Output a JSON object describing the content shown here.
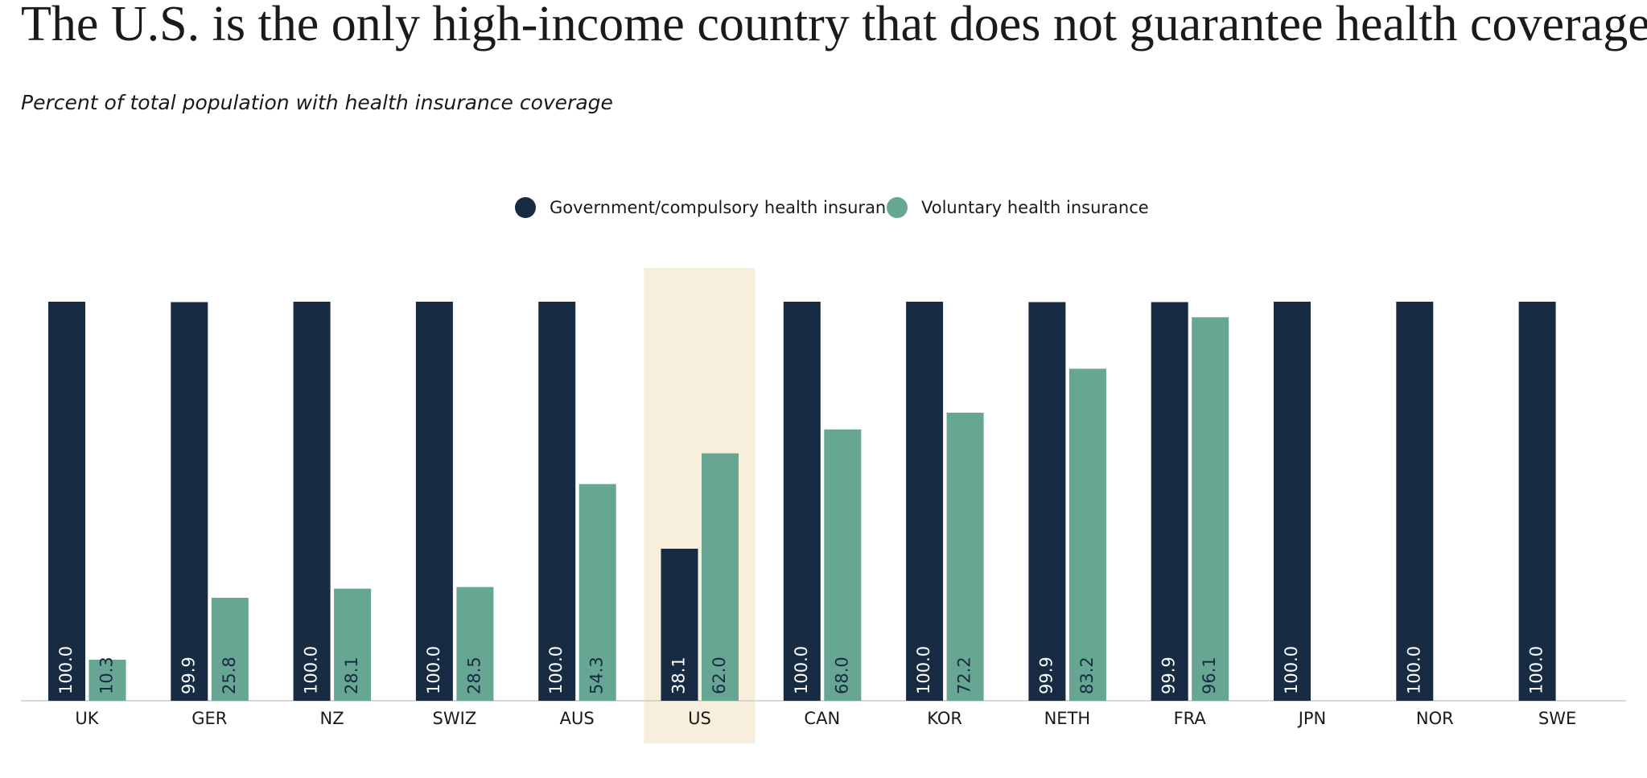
{
  "chart_data": {
    "type": "bar",
    "title": "The U.S. is the only high-income country that does not guarantee health coverage.",
    "subtitle": "Percent of total population with health insurance coverage",
    "categories": [
      "UK",
      "GER",
      "NZ",
      "SWIZ",
      "AUS",
      "US",
      "CAN",
      "KOR",
      "NETH",
      "FRA",
      "JPN",
      "NOR",
      "SWE"
    ],
    "series": [
      {
        "name": "Government/compulsory health insurance",
        "color": "#172b43",
        "values": [
          100,
          99.9,
          100,
          100,
          100,
          38.1,
          100,
          100,
          99.9,
          99.9,
          100,
          100,
          100
        ],
        "value_labels": [
          "100.0",
          "99.9",
          "100.0",
          "100.0",
          "100.0",
          "38.1",
          "100.0",
          "100.0",
          "99.9",
          "99.9",
          "100.0",
          "100.0",
          "100.0"
        ]
      },
      {
        "name": "Voluntary health insurance",
        "color": "#66a692",
        "values": [
          10.3,
          25.8,
          28.1,
          28.5,
          54.3,
          62,
          68,
          72.2,
          83.2,
          96.1,
          null,
          null,
          null
        ],
        "value_labels": [
          "10.3",
          "25.8",
          "28.1",
          "28.5",
          "54.3",
          "62.0",
          "68.0",
          "72.2",
          "83.2",
          "96.1",
          null,
          null,
          null
        ]
      }
    ],
    "ylim": [
      0,
      100
    ],
    "highlight": "US",
    "highlight_color": "#f7eedb",
    "legend": "top"
  }
}
